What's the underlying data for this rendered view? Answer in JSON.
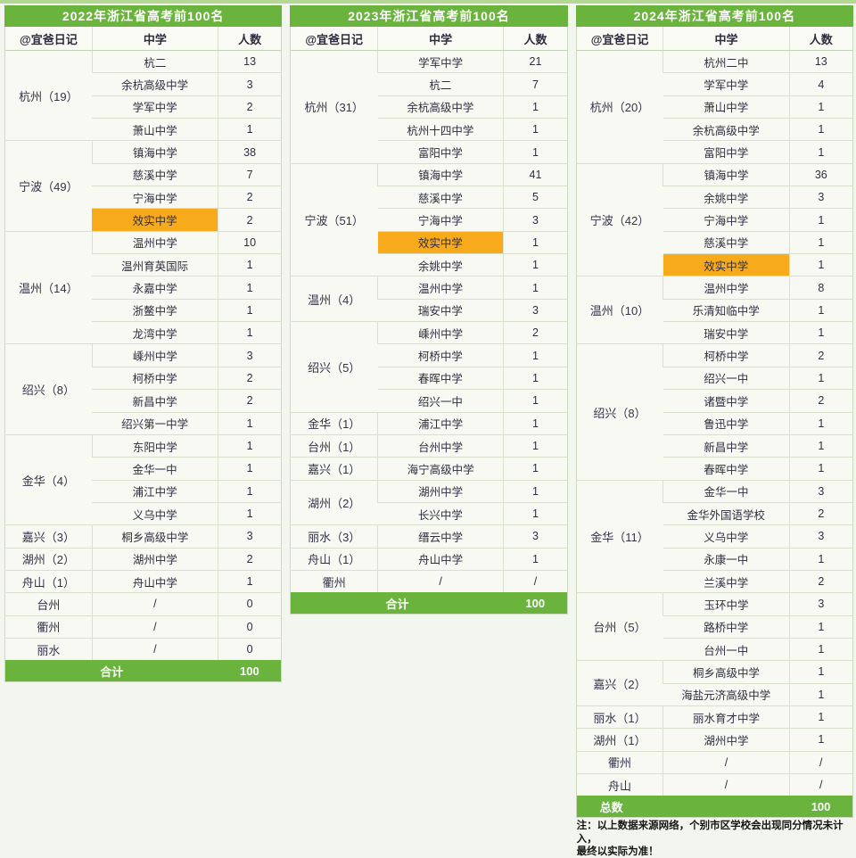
{
  "chart_data": {
    "type": "table",
    "header": {
      "author": "@宜爸日记",
      "school": "中学",
      "count": "人数"
    },
    "colors": {
      "green": "#6ab43e",
      "orange": "#f7ab1c",
      "text": "#2e2e40"
    },
    "tables": [
      {
        "title": "2022年浙江省高考前100名",
        "total_label": "合计",
        "total_value": "100",
        "total_align": "center",
        "groups": [
          {
            "city": "杭州（19）",
            "rows": [
              {
                "school": "杭二",
                "count": "13"
              },
              {
                "school": "余杭高级中学",
                "count": "3"
              },
              {
                "school": "学军中学",
                "count": "2"
              },
              {
                "school": "萧山中学",
                "count": "1"
              }
            ]
          },
          {
            "city": "宁波（49）",
            "rows": [
              {
                "school": "镇海中学",
                "count": "38"
              },
              {
                "school": "慈溪中学",
                "count": "7"
              },
              {
                "school": "宁海中学",
                "count": "2"
              },
              {
                "school": "效实中学",
                "count": "2",
                "highlight": true
              }
            ]
          },
          {
            "city": "温州（14）",
            "rows": [
              {
                "school": "温州中学",
                "count": "10"
              },
              {
                "school": "温州育英国际",
                "count": "1"
              },
              {
                "school": "永嘉中学",
                "count": "1"
              },
              {
                "school": "浙鳌中学",
                "count": "1"
              },
              {
                "school": "龙湾中学",
                "count": "1"
              }
            ]
          },
          {
            "city": "绍兴（8）",
            "rows": [
              {
                "school": "嵊州中学",
                "count": "3"
              },
              {
                "school": "柯桥中学",
                "count": "2"
              },
              {
                "school": "新昌中学",
                "count": "2"
              },
              {
                "school": "绍兴第一中学",
                "count": "1"
              }
            ]
          },
          {
            "city": "金华（4）",
            "rows": [
              {
                "school": "东阳中学",
                "count": "1"
              },
              {
                "school": "金华一中",
                "count": "1"
              },
              {
                "school": "浦江中学",
                "count": "1"
              },
              {
                "school": "义乌中学",
                "count": "1"
              }
            ]
          },
          {
            "city": "嘉兴（3）",
            "rows": [
              {
                "school": "桐乡高级中学",
                "count": "3"
              }
            ]
          },
          {
            "city": "湖州（2）",
            "rows": [
              {
                "school": "湖州中学",
                "count": "2"
              }
            ]
          },
          {
            "city": "舟山（1）",
            "rows": [
              {
                "school": "舟山中学",
                "count": "1"
              }
            ]
          },
          {
            "city": "台州",
            "rows": [
              {
                "school": "/",
                "count": "0"
              }
            ]
          },
          {
            "city": "衢州",
            "rows": [
              {
                "school": "/",
                "count": "0"
              }
            ]
          },
          {
            "city": "丽水",
            "rows": [
              {
                "school": "/",
                "count": "0"
              }
            ]
          }
        ]
      },
      {
        "title": "2023年浙江省高考前100名",
        "total_label": "合计",
        "total_value": "100",
        "total_align": "center",
        "groups": [
          {
            "city": "杭州（31）",
            "rows": [
              {
                "school": "学军中学",
                "count": "21"
              },
              {
                "school": "杭二",
                "count": "7"
              },
              {
                "school": "余杭高级中学",
                "count": "1"
              },
              {
                "school": "杭州十四中学",
                "count": "1"
              },
              {
                "school": "富阳中学",
                "count": "1"
              }
            ]
          },
          {
            "city": "宁波（51）",
            "rows": [
              {
                "school": "镇海中学",
                "count": "41"
              },
              {
                "school": "慈溪中学",
                "count": "5"
              },
              {
                "school": "宁海中学",
                "count": "3"
              },
              {
                "school": "效实中学",
                "count": "1",
                "highlight": true
              },
              {
                "school": "余姚中学",
                "count": "1"
              }
            ]
          },
          {
            "city": "温州（4）",
            "rows": [
              {
                "school": "温州中学",
                "count": "1"
              },
              {
                "school": "瑞安中学",
                "count": "3"
              }
            ]
          },
          {
            "city": "绍兴（5）",
            "rows": [
              {
                "school": "嵊州中学",
                "count": "2"
              },
              {
                "school": "柯桥中学",
                "count": "1"
              },
              {
                "school": "春晖中学",
                "count": "1"
              },
              {
                "school": "绍兴一中",
                "count": "1"
              }
            ]
          },
          {
            "city": "金华（1）",
            "rows": [
              {
                "school": "浦江中学",
                "count": "1"
              }
            ]
          },
          {
            "city": "台州（1）",
            "rows": [
              {
                "school": "台州中学",
                "count": "1"
              }
            ]
          },
          {
            "city": "嘉兴（1）",
            "rows": [
              {
                "school": "海宁高级中学",
                "count": "1"
              }
            ]
          },
          {
            "city": "湖州（2）",
            "rows": [
              {
                "school": "湖州中学",
                "count": "1"
              },
              {
                "school": "长兴中学",
                "count": "1"
              }
            ]
          },
          {
            "city": "丽水（3）",
            "rows": [
              {
                "school": "缙云中学",
                "count": "3"
              }
            ]
          },
          {
            "city": "舟山（1）",
            "rows": [
              {
                "school": "舟山中学",
                "count": "1"
              }
            ]
          },
          {
            "city": "衢州",
            "rows": [
              {
                "school": "/",
                "count": "/"
              }
            ]
          }
        ]
      },
      {
        "title": "2024年浙江省高考前100名",
        "total_label": "总数",
        "total_value": "100",
        "total_align": "left",
        "note": [
          "注：以上数据来源网络，个别市区学校会出现同分情况未计入，",
          "最终以实际为准！"
        ],
        "groups": [
          {
            "city": "杭州（20）",
            "rows": [
              {
                "school": "杭州二中",
                "count": "13"
              },
              {
                "school": "学军中学",
                "count": "4"
              },
              {
                "school": "萧山中学",
                "count": "1"
              },
              {
                "school": "余杭高级中学",
                "count": "1"
              },
              {
                "school": "富阳中学",
                "count": "1"
              }
            ]
          },
          {
            "city": "宁波（42）",
            "rows": [
              {
                "school": "镇海中学",
                "count": "36"
              },
              {
                "school": "余姚中学",
                "count": "3"
              },
              {
                "school": "宁海中学",
                "count": "1"
              },
              {
                "school": "慈溪中学",
                "count": "1"
              },
              {
                "school": "效实中学",
                "count": "1",
                "highlight": true
              }
            ]
          },
          {
            "city": "温州（10）",
            "rows": [
              {
                "school": "温州中学",
                "count": "8"
              },
              {
                "school": "乐清知临中学",
                "count": "1"
              },
              {
                "school": "瑞安中学",
                "count": "1"
              }
            ]
          },
          {
            "city": "绍兴（8）",
            "rows": [
              {
                "school": "柯桥中学",
                "count": "2"
              },
              {
                "school": "绍兴一中",
                "count": "1"
              },
              {
                "school": "诸暨中学",
                "count": "2"
              },
              {
                "school": "鲁迅中学",
                "count": "1"
              },
              {
                "school": "新昌中学",
                "count": "1"
              },
              {
                "school": "春晖中学",
                "count": "1"
              }
            ]
          },
          {
            "city": "金华（11）",
            "rows": [
              {
                "school": "金华一中",
                "count": "3"
              },
              {
                "school": "金华外国语学校",
                "count": "2"
              },
              {
                "school": "义乌中学",
                "count": "3"
              },
              {
                "school": "永康一中",
                "count": "1"
              },
              {
                "school": "兰溪中学",
                "count": "2"
              }
            ]
          },
          {
            "city": "台州（5）",
            "rows": [
              {
                "school": "玉环中学",
                "count": "3"
              },
              {
                "school": "路桥中学",
                "count": "1"
              },
              {
                "school": "台州一中",
                "count": "1"
              }
            ]
          },
          {
            "city": "嘉兴（2）",
            "rows": [
              {
                "school": "桐乡高级中学",
                "count": "1"
              },
              {
                "school": "海盐元济高级中学",
                "count": "1"
              }
            ]
          },
          {
            "city": "丽水（1）",
            "rows": [
              {
                "school": "丽水育才中学",
                "count": "1"
              }
            ]
          },
          {
            "city": "湖州（1）",
            "rows": [
              {
                "school": "湖州中学",
                "count": "1"
              }
            ]
          },
          {
            "city": "衢州",
            "rows": [
              {
                "school": "/",
                "count": "/"
              }
            ]
          },
          {
            "city": "舟山",
            "rows": [
              {
                "school": "/",
                "count": "/"
              }
            ]
          }
        ]
      }
    ]
  }
}
